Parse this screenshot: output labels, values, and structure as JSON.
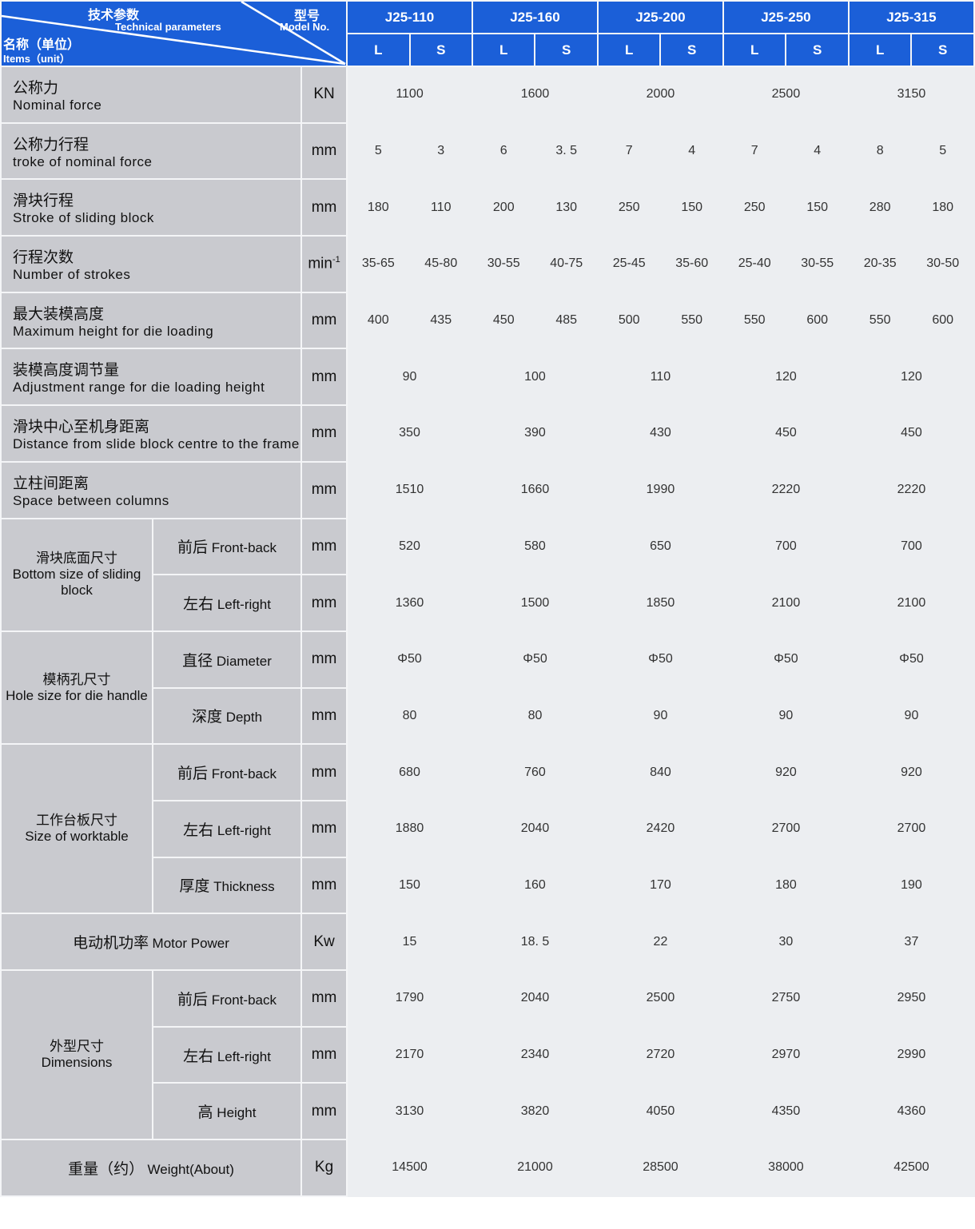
{
  "header": {
    "tech_cn": "技术参数",
    "tech_en": "Technical parameters",
    "model_cn": "型号",
    "model_en": "Model No.",
    "items_cn": "名称（单位）",
    "items_en": "Items（unit）",
    "models": [
      "J25-110",
      "J25-160",
      "J25-200",
      "J25-250",
      "J25-315"
    ],
    "sub": [
      "L",
      "S"
    ]
  },
  "colors": {
    "header_blue": "#1b5fd8",
    "label_gray": "#c9cacf",
    "value_bg": "#eceef1"
  },
  "rows": [
    {
      "label_cn": "公称力",
      "label_en": "Nominal  force",
      "unit": "KN",
      "values": [
        "1100",
        "1600",
        "2000",
        "2500",
        "3150"
      ]
    },
    {
      "label_cn": "公称力行程",
      "label_en": "troke  of  nominal  force",
      "unit": "mm",
      "values": [
        "5",
        "3",
        "6",
        "3. 5",
        "7",
        "4",
        "7",
        "4",
        "8",
        "5"
      ]
    },
    {
      "label_cn": "滑块行程",
      "label_en": "Stroke  of  sliding  block",
      "unit": "mm",
      "values": [
        "180",
        "110",
        "200",
        "130",
        "250",
        "150",
        "250",
        "150",
        "280",
        "180"
      ]
    },
    {
      "label_cn": "行程次数",
      "label_en": "Number  of  strokes",
      "unit": "min",
      "unit_sup": "-1",
      "values": [
        "35-65",
        "45-80",
        "30-55",
        "40-75",
        "25-45",
        "35-60",
        "25-40",
        "30-55",
        "20-35",
        "30-50"
      ]
    },
    {
      "label_cn": "最大装模高度",
      "label_en": "Maximum  height  for  die  loading",
      "unit": "mm",
      "values": [
        "400",
        "435",
        "450",
        "485",
        "500",
        "550",
        "550",
        "600",
        "550",
        "600"
      ]
    },
    {
      "label_cn": "装模高度调节量",
      "label_en": "Adjustment range for die loading height",
      "unit": "mm",
      "values": [
        "90",
        "100",
        "110",
        "120",
        "120"
      ]
    },
    {
      "label_cn": "滑块中心至机身距离",
      "label_en": "Distance from slide block centre to the frame",
      "unit": "mm",
      "values": [
        "350",
        "390",
        "430",
        "450",
        "450"
      ]
    },
    {
      "label_cn": "立柱间距离",
      "label_en": "Space  between  columns",
      "unit": "mm",
      "values": [
        "1510",
        "1660",
        "1990",
        "2220",
        "2220"
      ]
    },
    {
      "group": {
        "cn": "滑块底面尺寸",
        "en": "Bottom  size  of  sliding  block",
        "span": 2
      },
      "sub_cn": "前后",
      "sub_en": "Front-back",
      "unit": "mm",
      "values": [
        "520",
        "580",
        "650",
        "700",
        "700"
      ]
    },
    {
      "sub_cn": "左右",
      "sub_en": "Left-right",
      "unit": "mm",
      "values": [
        "1360",
        "1500",
        "1850",
        "2100",
        "2100"
      ]
    },
    {
      "group": {
        "cn": "模柄孔尺寸",
        "en": "Hole  size  for  die  handle",
        "span": 2
      },
      "sub_cn": "直径",
      "sub_en": "Diameter",
      "unit": "mm",
      "values": [
        "Φ50",
        "Φ50",
        "Φ50",
        "Φ50",
        "Φ50"
      ]
    },
    {
      "sub_cn": "深度",
      "sub_en": "Depth",
      "unit": "mm",
      "values": [
        "80",
        "80",
        "90",
        "90",
        "90"
      ]
    },
    {
      "group": {
        "cn": "工作台板尺寸",
        "en": "Size  of  worktable",
        "span": 3
      },
      "sub_cn": "前后",
      "sub_en": "Front-back",
      "unit": "mm",
      "values": [
        "680",
        "760",
        "840",
        "920",
        "920"
      ]
    },
    {
      "sub_cn": "左右",
      "sub_en": "Left-right",
      "unit": "mm",
      "values": [
        "1880",
        "2040",
        "2420",
        "2700",
        "2700"
      ]
    },
    {
      "sub_cn": "厚度",
      "sub_en": "Thickness",
      "unit": "mm",
      "values": [
        "150",
        "160",
        "170",
        "180",
        "190"
      ]
    },
    {
      "label_cn": "电动机功率",
      "label_en": "Motor  Power",
      "inline": true,
      "unit": "Kw",
      "values": [
        "15",
        "18. 5",
        "22",
        "30",
        "37"
      ]
    },
    {
      "group": {
        "cn": "外型尺寸",
        "en": "Dimensions",
        "span": 3
      },
      "sub_cn": "前后",
      "sub_en": "Front-back",
      "unit": "mm",
      "values": [
        "1790",
        "2040",
        "2500",
        "2750",
        "2950"
      ]
    },
    {
      "sub_cn": "左右",
      "sub_en": "Left-right",
      "unit": "mm",
      "values": [
        "2170",
        "2340",
        "2720",
        "2970",
        "2990"
      ]
    },
    {
      "sub_cn": "高",
      "sub_en": "Height",
      "unit": "mm",
      "values": [
        "3130",
        "3820",
        "4050",
        "4350",
        "4360"
      ]
    },
    {
      "label_cn": "重量（约）",
      "label_en": "Weight(About)",
      "inline": true,
      "unit": "Kg",
      "values": [
        "14500",
        "21000",
        "28500",
        "38000",
        "42500"
      ]
    }
  ]
}
